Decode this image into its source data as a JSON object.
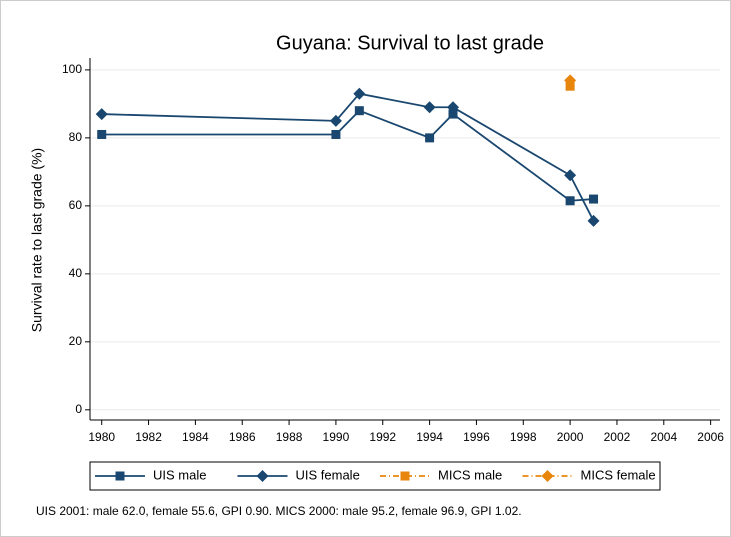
{
  "chart_data": {
    "type": "line",
    "title": "Guyana: Survival to last grade",
    "y_label": "Survival rate to last grade (%)",
    "note": "UIS 2001: male 62.0, female 55.6, GPI 0.90. MICS 2000: male 95.2, female 96.9, GPI 1.02.",
    "xlim": [
      1979.5,
      2006.4
    ],
    "xticks": [
      1980,
      1982,
      1984,
      1986,
      1988,
      1990,
      1992,
      1994,
      1996,
      1998,
      2000,
      2002,
      2004,
      2006
    ],
    "ylim": [
      -3,
      103.5
    ],
    "yticks": [
      0,
      20,
      40,
      60,
      80,
      100
    ],
    "grid": true,
    "legend": "bottom",
    "series": [
      {
        "name": "UIS male",
        "color": "#1a476f",
        "marker": "square",
        "dash": "solid",
        "x": [
          1980,
          1990,
          1991,
          1994,
          1995,
          2000,
          2001
        ],
        "values": [
          81,
          81,
          88,
          80,
          87,
          61.5,
          62.0
        ]
      },
      {
        "name": "UIS female",
        "color": "#1a476f",
        "marker": "diamond",
        "dash": "solid",
        "x": [
          1980,
          1990,
          1991,
          1994,
          1995,
          2000,
          2001
        ],
        "values": [
          87,
          85,
          93,
          89,
          89,
          69,
          55.6
        ]
      },
      {
        "name": "MICS male",
        "color": "#e8850c",
        "marker": "square",
        "dash": "dashdot",
        "x": [
          2000
        ],
        "values": [
          95.2
        ]
      },
      {
        "name": "MICS female",
        "color": "#e8850c",
        "marker": "diamond",
        "dash": "dashdot",
        "x": [
          2000
        ],
        "values": [
          96.9
        ]
      }
    ]
  }
}
